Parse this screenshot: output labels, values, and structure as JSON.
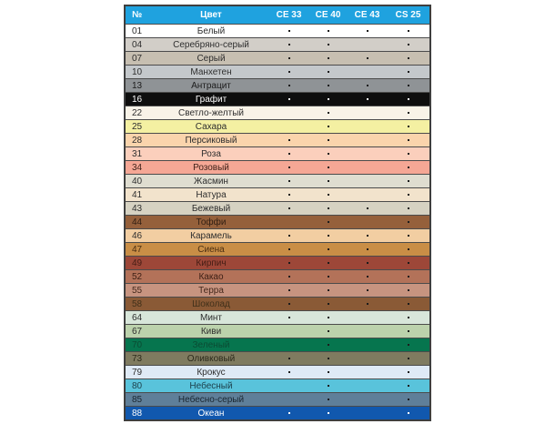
{
  "theme": {
    "header_bg": "#1FA2DF",
    "header_text": "#FFFFFF",
    "border": "#3E3E3E",
    "row_separator": "#4B4B4B",
    "default_text": "#2E2E2E",
    "default_dot": "#1C1C1C",
    "page_bg": "#FFFFFF"
  },
  "table": {
    "columns": [
      "№",
      "Цвет",
      "CE 33",
      "CE 40",
      "CE 43",
      "CS 25"
    ],
    "rows": [
      {
        "num": "01",
        "name": "Белый",
        "bg": "#FFFFFF",
        "ce33": true,
        "ce40": true,
        "ce43": true,
        "cs25": true
      },
      {
        "num": "04",
        "name": "Серебряно-серый",
        "bg": "#D2CEC8",
        "ce33": true,
        "ce40": true,
        "ce43": false,
        "cs25": true
      },
      {
        "num": "07",
        "name": "Серый",
        "bg": "#C7BFB1",
        "ce33": true,
        "ce40": true,
        "ce43": true,
        "cs25": true
      },
      {
        "num": "10",
        "name": "Манхетен",
        "bg": "#C4C8CB",
        "ce33": true,
        "ce40": true,
        "ce43": false,
        "cs25": true
      },
      {
        "num": "13",
        "name": "Антрацит",
        "bg": "#8F9396",
        "fg": "#1C1C1C",
        "ce33": true,
        "ce40": true,
        "ce43": true,
        "cs25": true
      },
      {
        "num": "16",
        "name": "Графит",
        "bg": "#0E0E0E",
        "fg": "#FFFFFF",
        "dot": "#FFFFFF",
        "ce33": true,
        "ce40": true,
        "ce43": true,
        "cs25": true
      },
      {
        "num": "22",
        "name": "Светло-желтый",
        "bg": "#F9F3E8",
        "ce33": false,
        "ce40": true,
        "ce43": false,
        "cs25": true
      },
      {
        "num": "25",
        "name": "Сахара",
        "bg": "#F4F0A2",
        "ce33": false,
        "ce40": true,
        "ce43": false,
        "cs25": true
      },
      {
        "num": "28",
        "name": "Персиковый",
        "bg": "#FAD4AC",
        "ce33": true,
        "ce40": true,
        "ce43": false,
        "cs25": true
      },
      {
        "num": "31",
        "name": "Роза",
        "bg": "#FBCFBC",
        "ce33": true,
        "ce40": true,
        "ce43": false,
        "cs25": true
      },
      {
        "num": "34",
        "name": "Розовый",
        "bg": "#F5A795",
        "fg": "#40221A",
        "ce33": true,
        "ce40": true,
        "ce43": false,
        "cs25": true
      },
      {
        "num": "40",
        "name": "Жасмин",
        "bg": "#DFDDD0",
        "ce33": true,
        "ce40": true,
        "ce43": false,
        "cs25": true
      },
      {
        "num": "41",
        "name": "Натура",
        "bg": "#F2E3CC",
        "ce33": true,
        "ce40": true,
        "ce43": false,
        "cs25": true
      },
      {
        "num": "43",
        "name": "Бежевый",
        "bg": "#D6D2C2",
        "ce33": true,
        "ce40": true,
        "ce43": true,
        "cs25": true
      },
      {
        "num": "44",
        "name": "Тоффи",
        "bg": "#95603B",
        "fg": "#332014",
        "ce33": false,
        "ce40": true,
        "ce43": false,
        "cs25": true
      },
      {
        "num": "46",
        "name": "Карамель",
        "bg": "#F2CEA2",
        "ce33": true,
        "ce40": true,
        "ce43": true,
        "cs25": true
      },
      {
        "num": "47",
        "name": "Сиена",
        "bg": "#C98E46",
        "fg": "#4A2E12",
        "ce33": true,
        "ce40": true,
        "ce43": true,
        "cs25": true
      },
      {
        "num": "49",
        "name": "Кирпич",
        "bg": "#9D4738",
        "fg": "#451D15",
        "ce33": true,
        "ce40": true,
        "ce43": true,
        "cs25": true
      },
      {
        "num": "52",
        "name": "Какао",
        "bg": "#B37259",
        "fg": "#3D2016",
        "ce33": true,
        "ce40": true,
        "ce43": true,
        "cs25": true
      },
      {
        "num": "55",
        "name": "Терра",
        "bg": "#C79480",
        "fg": "#44281C",
        "ce33": true,
        "ce40": true,
        "ce43": true,
        "cs25": true
      },
      {
        "num": "58",
        "name": "Шоколад",
        "bg": "#8A5A36",
        "fg": "#40301A",
        "ce33": true,
        "ce40": true,
        "ce43": true,
        "cs25": true
      },
      {
        "num": "64",
        "name": "Минт",
        "bg": "#D8E6DA",
        "ce33": true,
        "ce40": true,
        "ce43": false,
        "cs25": true
      },
      {
        "num": "67",
        "name": "Киви",
        "bg": "#BCD2AC",
        "ce33": false,
        "ce40": true,
        "ce43": false,
        "cs25": true
      },
      {
        "num": "70",
        "name": "Зеленый",
        "bg": "#06754E",
        "fg": "#0B4B33",
        "ce33": false,
        "ce40": true,
        "ce43": false,
        "cs25": true
      },
      {
        "num": "73",
        "name": "Оливковый",
        "bg": "#7F7B60",
        "fg": "#2C2A1B",
        "ce33": true,
        "ce40": true,
        "ce43": false,
        "cs25": true
      },
      {
        "num": "79",
        "name": "Крокус",
        "bg": "#DFEAF6",
        "ce33": true,
        "ce40": true,
        "ce43": false,
        "cs25": true
      },
      {
        "num": "80",
        "name": "Небесный",
        "bg": "#59C3DB",
        "fg": "#1C3F4A",
        "ce33": false,
        "ce40": true,
        "ce43": false,
        "cs25": true
      },
      {
        "num": "85",
        "name": "Небесно-серый",
        "bg": "#5F7F99",
        "fg": "#1A2630",
        "ce33": false,
        "ce40": true,
        "ce43": false,
        "cs25": true
      },
      {
        "num": "88",
        "name": "Океан",
        "bg": "#1158AE",
        "fg": "#FFFFFF",
        "dot": "#FFFFFF",
        "ce33": true,
        "ce40": true,
        "ce43": false,
        "cs25": true
      }
    ]
  }
}
